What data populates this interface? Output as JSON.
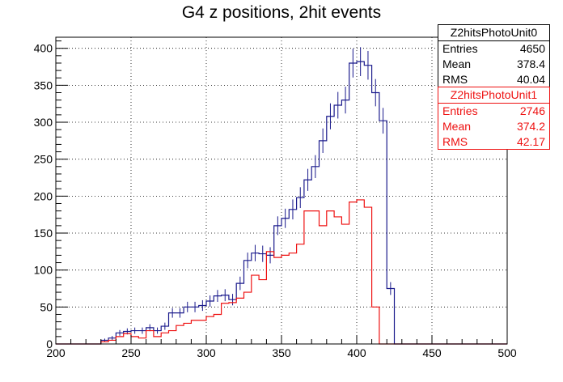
{
  "chart_data": {
    "type": "histogram-step",
    "title": "G4 z positions, 2hit events",
    "xlim": [
      200,
      500
    ],
    "ylim": [
      0,
      415
    ],
    "x_ticks": [
      200,
      250,
      300,
      350,
      400,
      450,
      500
    ],
    "y_ticks": [
      0,
      50,
      100,
      150,
      200,
      250,
      300,
      350,
      400
    ],
    "grid": true,
    "bin_width": 5,
    "bin_edges_start": 230,
    "series": [
      {
        "name": "Z2hitsPhotoUnit0",
        "color": "#1a1a8c",
        "error_bars": true,
        "values": [
          5,
          8,
          15,
          17,
          18,
          18,
          22,
          18,
          24,
          42,
          42,
          50,
          50,
          52,
          58,
          65,
          66,
          60,
          82,
          113,
          123,
          122,
          120,
          160,
          170,
          182,
          198,
          222,
          240,
          275,
          308,
          323,
          330,
          380,
          382,
          377,
          340,
          302,
          75
        ]
      },
      {
        "name": "Z2hitsPhotoUnit1",
        "color": "#ee1111",
        "error_bars": false,
        "values": [
          3,
          5,
          10,
          14,
          10,
          8,
          18,
          10,
          15,
          18,
          25,
          28,
          32,
          32,
          37,
          40,
          55,
          56,
          62,
          70,
          93,
          87,
          125,
          117,
          120,
          123,
          135,
          180,
          180,
          160,
          180,
          172,
          162,
          192,
          195,
          185,
          50
        ]
      }
    ]
  },
  "stats": [
    {
      "name": "Z2hitsPhotoUnit0",
      "rows": [
        {
          "label": "Entries",
          "value": "4650"
        },
        {
          "label": "Mean",
          "value": "378.4"
        },
        {
          "label": "RMS",
          "value": "40.04"
        }
      ]
    },
    {
      "name": "Z2hitsPhotoUnit1",
      "rows": [
        {
          "label": "Entries",
          "value": "2746"
        },
        {
          "label": "Mean",
          "value": "374.2"
        },
        {
          "label": "RMS",
          "value": "42.17"
        }
      ]
    }
  ]
}
